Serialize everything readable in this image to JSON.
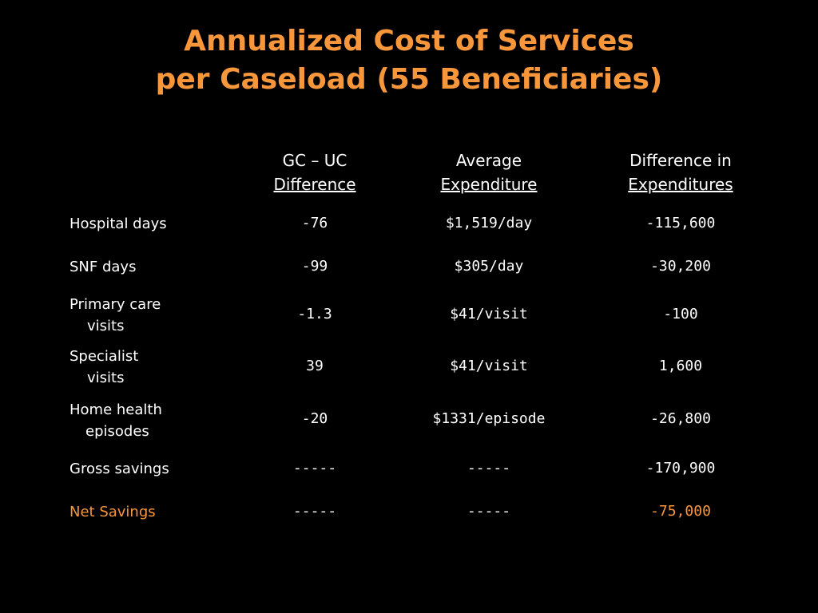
{
  "title": {
    "line1": "Annualized Cost of Services",
    "line2": "per Caseload (55 Beneficiaries)"
  },
  "table": {
    "columns": [
      {
        "line1": "GC – UC",
        "line2": "Difference"
      },
      {
        "line1": "Average",
        "line2": "Expenditure"
      },
      {
        "line1": "Difference in",
        "line2": "Expenditures"
      }
    ],
    "rows": [
      {
        "label1": "Hospital days",
        "label2": "",
        "gc_uc": "-76",
        "avg": "$1,519/day",
        "diff": "-115,600"
      },
      {
        "label1": "SNF days",
        "label2": "",
        "gc_uc": "-99",
        "avg": "$305/day",
        "diff": "-30,200"
      },
      {
        "label1": "Primary care",
        "label2": "visits",
        "gc_uc": "-1.3",
        "avg": "$41/visit",
        "diff": "-100"
      },
      {
        "label1": "Specialist",
        "label2": "visits",
        "gc_uc": "39",
        "avg": "$41/visit",
        "diff": "1,600"
      },
      {
        "label1": "Home health",
        "label2": "episodes",
        "gc_uc": "-20",
        "avg": "$1331/episode",
        "diff": "-26,800"
      },
      {
        "label1": "Gross savings",
        "label2": "",
        "gc_uc": "-----",
        "avg": "-----",
        "diff": "-170,900"
      },
      {
        "label1": "Net Savings",
        "label2": "",
        "gc_uc": "-----",
        "avg": "-----",
        "diff": "-75,000"
      }
    ]
  },
  "colors": {
    "background": "#000000",
    "accent": "#f7963a",
    "text": "#ffffff"
  }
}
